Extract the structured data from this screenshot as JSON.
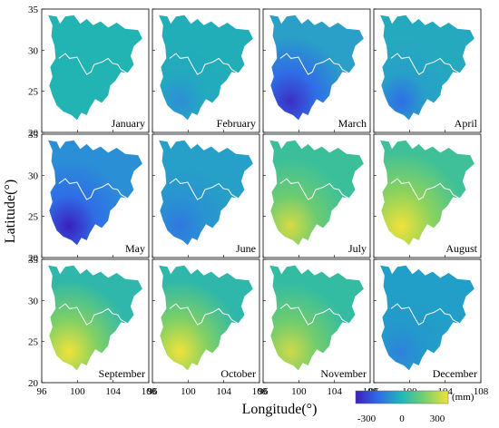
{
  "figure": {
    "y_axis_title": "Latitude(°)",
    "x_axis_title": "Longitude(°)",
    "y_ticks": [
      "35",
      "30",
      "25",
      "20"
    ],
    "x_ticks": [
      "96",
      "100",
      "104",
      "108"
    ],
    "colorbar": {
      "unit": "(mm)",
      "tick_labels": [
        "-300",
        "0",
        "300"
      ],
      "colors": [
        "#3b1fbe",
        "#2f6ee6",
        "#1fb8b8",
        "#7bd06a",
        "#f1e23a"
      ]
    }
  },
  "panels": [
    {
      "month": "January"
    },
    {
      "month": "February"
    },
    {
      "month": "March"
    },
    {
      "month": "April"
    },
    {
      "month": "May"
    },
    {
      "month": "June"
    },
    {
      "month": "July"
    },
    {
      "month": "August"
    },
    {
      "month": "September"
    },
    {
      "month": "October"
    },
    {
      "month": "November"
    },
    {
      "month": "December"
    }
  ]
}
